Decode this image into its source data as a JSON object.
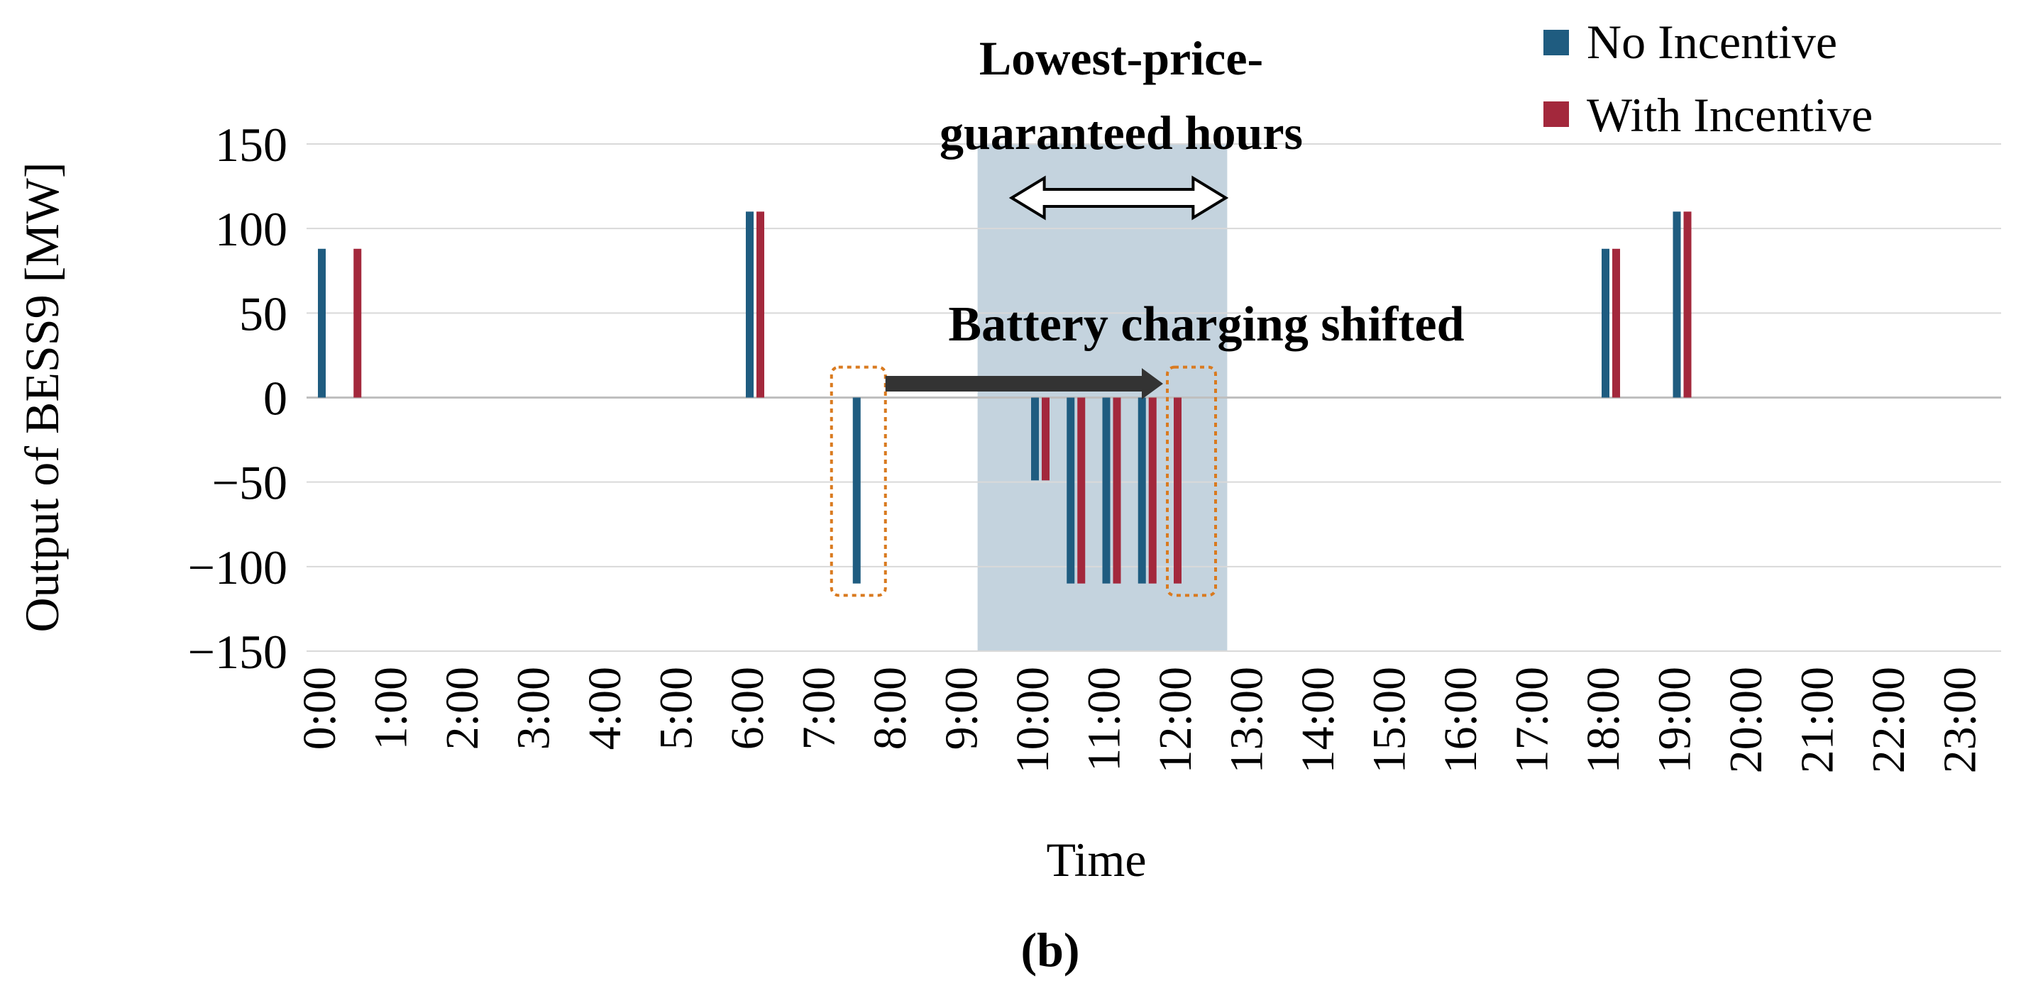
{
  "chart_data": {
    "type": "bar",
    "title": "",
    "xlabel": "Time",
    "ylabel": "Output of BESS9 [MW]",
    "ylim": [
      -150,
      150
    ],
    "yticks": [
      150,
      100,
      50,
      0,
      -50,
      -100,
      -150
    ],
    "ytick_labels": [
      "150",
      "100",
      "50",
      "0",
      "−50",
      "−100",
      "−150"
    ],
    "xlim": [
      0,
      24
    ],
    "xtick_labels": [
      "0:00",
      "1:00",
      "2:00",
      "3:00",
      "4:00",
      "5:00",
      "6:00",
      "7:00",
      "8:00",
      "9:00",
      "10:00",
      "11:00",
      "12:00",
      "13:00",
      "14:00",
      "15:00",
      "16:00",
      "17:00",
      "18:00",
      "19:00",
      "20:00",
      "21:00",
      "22:00",
      "23:00"
    ],
    "grid": true,
    "legend_position": "top-right",
    "series": [
      {
        "name": "No Incentive",
        "color": "#1f5c80",
        "points": [
          {
            "x": 0.0,
            "y": 88
          },
          {
            "x": 6.0,
            "y": 110
          },
          {
            "x": 7.5,
            "y": -110
          },
          {
            "x": 10.0,
            "y": -49
          },
          {
            "x": 10.5,
            "y": -110
          },
          {
            "x": 11.0,
            "y": -110
          },
          {
            "x": 11.5,
            "y": -110
          },
          {
            "x": 18.0,
            "y": 88
          },
          {
            "x": 19.0,
            "y": 110
          }
        ]
      },
      {
        "name": "With Incentive",
        "color": "#a3283c",
        "points": [
          {
            "x": 0.5,
            "y": 88
          },
          {
            "x": 6.0,
            "y": 110
          },
          {
            "x": 10.0,
            "y": -49
          },
          {
            "x": 10.5,
            "y": -110
          },
          {
            "x": 11.0,
            "y": -110
          },
          {
            "x": 11.5,
            "y": -110
          },
          {
            "x": 12.0,
            "y": -110
          },
          {
            "x": 18.0,
            "y": 88
          },
          {
            "x": 19.0,
            "y": 110
          }
        ]
      }
    ],
    "highlight_region": {
      "label_line1": "Lowest-price-",
      "label_line2": "guaranteed hours",
      "x_start": 9.25,
      "x_end": 12.75,
      "color": "#c4d3de"
    },
    "annotation": {
      "text": "Battery charging shifted",
      "from_x": 7.5,
      "to_x": 12.0,
      "arrow_color": "#333333",
      "box_color": "#d97a1f"
    },
    "caption": "(b)"
  }
}
